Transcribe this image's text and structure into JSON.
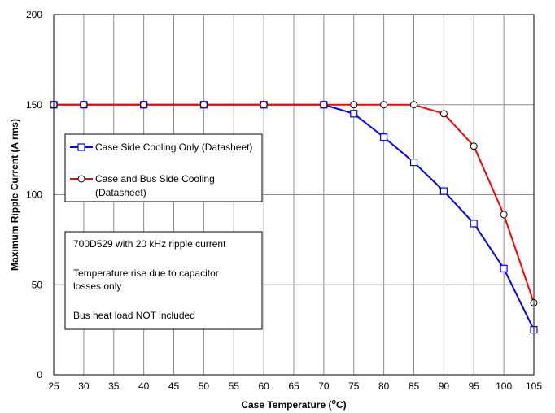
{
  "chart_data": {
    "type": "line",
    "xlabel": "Case Temperature (",
    "xlabel_sup": "o",
    "xlabel_end": "C)",
    "ylabel": "Maximum Ripple Current (A rms)",
    "xticks": [
      25,
      30,
      35,
      40,
      45,
      50,
      55,
      60,
      65,
      70,
      75,
      80,
      85,
      90,
      95,
      100,
      105
    ],
    "yticks": [
      0,
      50,
      100,
      150,
      200
    ],
    "xlim": [
      25,
      105
    ],
    "ylim": [
      0,
      200
    ],
    "grid": "horizontal and vertical",
    "legend_position": "left-middle",
    "series": [
      {
        "name": "Case Side Cooling Only (Datasheet)",
        "color": "#0000ff",
        "marker": "square",
        "x": [
          25,
          30,
          40,
          50,
          60,
          70,
          75,
          80,
          85,
          90,
          95,
          100,
          105
        ],
        "y": [
          150,
          150,
          150,
          150,
          150,
          150,
          145,
          132,
          118,
          102,
          84,
          59,
          25
        ]
      },
      {
        "name_lines": [
          "Case and Bus Side Cooling",
          "(Datasheet)"
        ],
        "color": "#ff0000",
        "marker": "circle",
        "x": [
          25,
          30,
          40,
          50,
          60,
          70,
          75,
          80,
          85,
          90,
          95,
          100,
          105
        ],
        "y": [
          150,
          150,
          150,
          150,
          150,
          150,
          150,
          150,
          150,
          145,
          127,
          89,
          40
        ]
      }
    ],
    "annotation_lines": [
      "700D529 with 20 kHz ripple current",
      "",
      "Temperature rise due to capacitor",
      "losses only",
      "",
      "Bus heat load NOT included"
    ]
  }
}
